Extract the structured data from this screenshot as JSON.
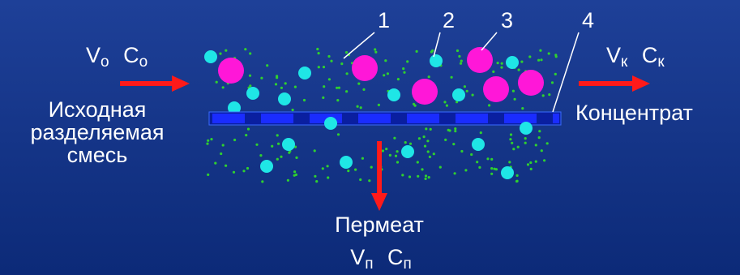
{
  "feed": {
    "symbols": [
      {
        "main": "V",
        "sub": "о"
      },
      {
        "main": "C",
        "sub": "о"
      }
    ],
    "label": [
      "Исходная",
      "разделяемая",
      "смесь"
    ]
  },
  "concentrate": {
    "symbols": [
      {
        "main": "V",
        "sub": "к"
      },
      {
        "main": "C",
        "sub": "к"
      }
    ],
    "label": "Концентрат"
  },
  "permeate": {
    "label": "Пермеат",
    "symbols": [
      {
        "main": "V",
        "sub": "п"
      },
      {
        "main": "C",
        "sub": "п"
      }
    ]
  },
  "callouts": [
    "1",
    "2",
    "3",
    "4"
  ]
}
